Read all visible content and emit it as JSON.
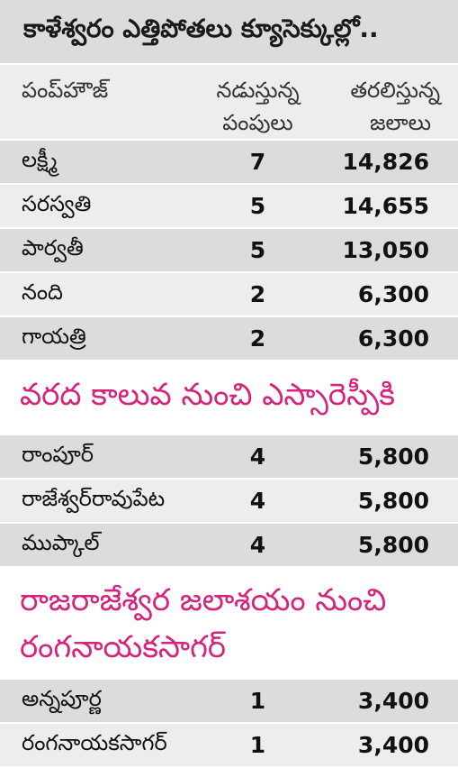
{
  "title": "కాళేశ్వరం ఎత్తిపోతలు క్యూసెక్కుల్లో..",
  "headers": {
    "pumphouse": "పంప్‌హౌజ్",
    "running_line1": "నడుస్తున్న",
    "running_line2": "పంపులు",
    "lifting_line1": "తరలిస్తున్న",
    "lifting_line2": "జలాలు"
  },
  "group1": [
    {
      "name": "లక్ష్మీ",
      "pumps": "7",
      "water": "14,826"
    },
    {
      "name": "సరస్వతి",
      "pumps": "5",
      "water": "14,655"
    },
    {
      "name": "పార్వతీ",
      "pumps": "5",
      "water": "13,050"
    },
    {
      "name": "నంది",
      "pumps": "2",
      "water": "6,300"
    },
    {
      "name": "గాయత్రి",
      "pumps": "2",
      "water": "6,300"
    }
  ],
  "section2_title": "వరద కాలువ నుంచి ఎస్సారెస్పీకి",
  "group2": [
    {
      "name": "రాంపూర్",
      "pumps": "4",
      "water": "5,800"
    },
    {
      "name": "రాజేశ్వర్‌రావుపేట",
      "pumps": "4",
      "water": "5,800"
    },
    {
      "name": "ముప్కాల్",
      "pumps": "4",
      "water": "5,800"
    }
  ],
  "section3_title_line1": "రాజరాజేశ్వర జలాశయం నుంచి",
  "section3_title_line2": "రంగనాయకసాగర్",
  "group3": [
    {
      "name": "అన్నపూర్ణ",
      "pumps": "1",
      "water": "3,400"
    },
    {
      "name": "రంగనాయకసాగర్",
      "pumps": "1",
      "water": "3,400"
    }
  ],
  "colors": {
    "accent": "#d6247d",
    "row_dark": "#dcdcdc",
    "row_light": "#ededed"
  }
}
